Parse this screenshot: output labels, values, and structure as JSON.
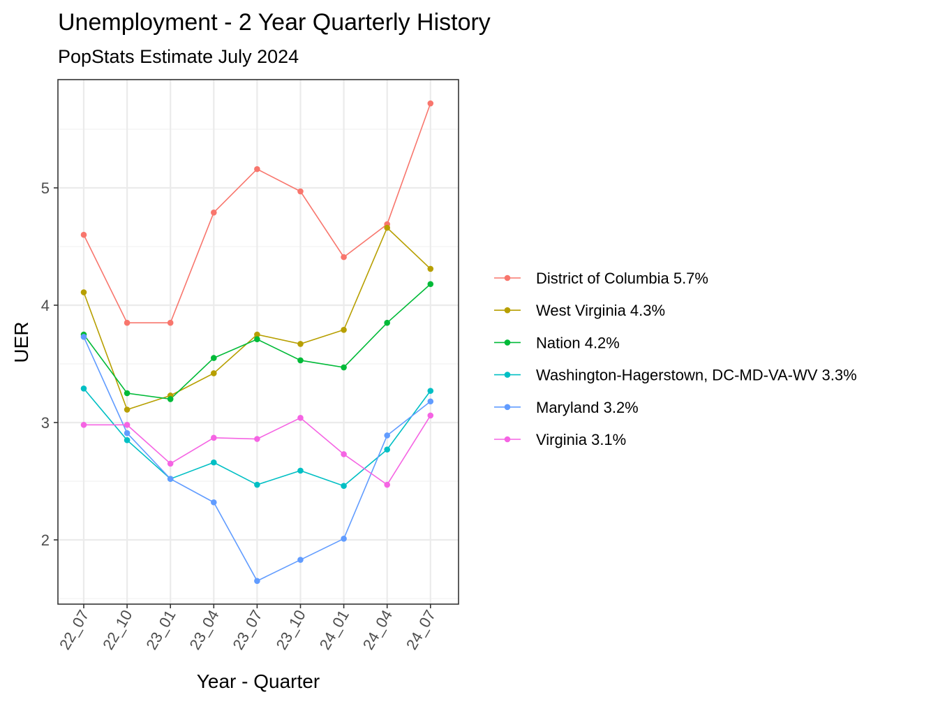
{
  "chart_data": {
    "type": "line",
    "title": "Unemployment - 2 Year Quarterly History",
    "subtitle": "PopStats Estimate July 2024",
    "xlabel": "Year - Quarter",
    "ylabel": "UER",
    "categories": [
      "22_07",
      "22_10",
      "23_01",
      "23_04",
      "23_07",
      "23_10",
      "24_01",
      "24_04",
      "24_07"
    ],
    "ylim": [
      1.45,
      5.9
    ],
    "yticks": [
      2,
      3,
      4,
      5
    ],
    "grid": true,
    "legend_position": "right",
    "series": [
      {
        "name": "District of Columbia 5.7%",
        "color": "#F8766D",
        "values": [
          4.6,
          3.85,
          3.85,
          4.79,
          5.16,
          4.97,
          4.41,
          4.69,
          5.72
        ]
      },
      {
        "name": "West Virginia 4.3%",
        "color": "#B79F00",
        "values": [
          4.11,
          3.11,
          3.23,
          3.42,
          3.75,
          3.67,
          3.79,
          4.66,
          4.31
        ]
      },
      {
        "name": "Nation 4.2%",
        "color": "#00BA38",
        "values": [
          3.75,
          3.25,
          3.2,
          3.55,
          3.71,
          3.53,
          3.47,
          3.85,
          4.18
        ]
      },
      {
        "name": "Washington-Hagerstown, DC-MD-VA-WV 3.3%",
        "color": "#00BFC4",
        "values": [
          3.29,
          2.85,
          2.52,
          2.66,
          2.47,
          2.59,
          2.46,
          2.77,
          3.27
        ]
      },
      {
        "name": "Maryland 3.2%",
        "color": "#619CFF",
        "values": [
          3.73,
          2.91,
          2.52,
          2.32,
          1.65,
          1.83,
          2.01,
          2.89,
          3.18
        ]
      },
      {
        "name": "Virginia 3.1%",
        "color": "#F564E3",
        "values": [
          2.98,
          2.98,
          2.65,
          2.87,
          2.86,
          3.04,
          2.73,
          2.47,
          3.06
        ]
      }
    ]
  }
}
